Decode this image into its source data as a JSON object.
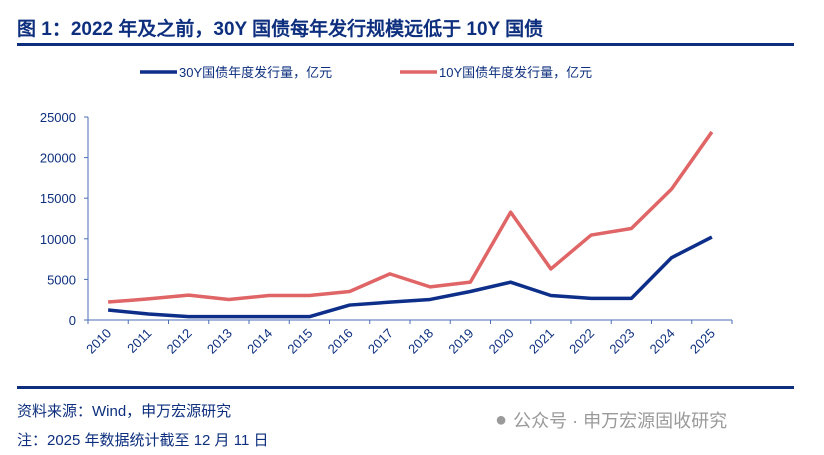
{
  "title": "图 1：2022 年及之前，30Y 国债每年发行规模远低于 10Y 国债",
  "source": "资料来源：Wind，申万宏源研究",
  "note": "注：2025 年数据统计截至 12 月 11 日",
  "watermark": "公众号 · 申万宏源固收研究",
  "chart_data": {
    "type": "line",
    "categories": [
      "2010",
      "2011",
      "2012",
      "2013",
      "2014",
      "2015",
      "2016",
      "2017",
      "2018",
      "2019",
      "2020",
      "2021",
      "2022",
      "2023",
      "2024",
      "2025"
    ],
    "series": [
      {
        "name": "30Y国债年度发行量，亿元",
        "color": "#0d2f8a",
        "values": [
          1230,
          740,
          410,
          410,
          410,
          410,
          1840,
          2200,
          2530,
          3510,
          4660,
          3020,
          2660,
          2660,
          7680,
          10210
        ]
      },
      {
        "name": "10Y国债年度发行量，亿元",
        "color": "#e06566",
        "values": [
          2210,
          2600,
          3060,
          2530,
          3020,
          3020,
          3510,
          5680,
          4080,
          4660,
          13280,
          6290,
          10460,
          11270,
          16130,
          23160
        ]
      }
    ],
    "ylim": [
      0,
      25000
    ],
    "yticks": [
      "0",
      "5000",
      "10000",
      "15000",
      "20000",
      "25000"
    ],
    "grid": false,
    "legend": "top"
  }
}
